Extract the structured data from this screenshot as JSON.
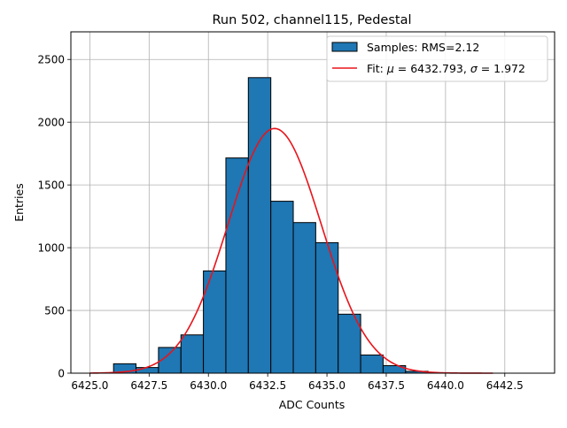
{
  "chart_data": {
    "type": "bar",
    "title": "Run 502, channel115, Pedestal",
    "xlabel": "ADC Counts",
    "ylabel": "Entries",
    "xlim": [
      6424.2,
      6444.6
    ],
    "ylim": [
      0,
      2720
    ],
    "xticks": [
      6425.0,
      6427.5,
      6430.0,
      6432.5,
      6435.0,
      6437.5,
      6440.0,
      6442.5
    ],
    "xtick_labels": [
      "6425.0",
      "6427.5",
      "6430.0",
      "6432.5",
      "6435.0",
      "6437.5",
      "6440.0",
      "6442.5"
    ],
    "yticks": [
      0,
      500,
      1000,
      1500,
      2000,
      2500
    ],
    "ytick_labels": [
      "0",
      "500",
      "1000",
      "1500",
      "2000",
      "2500"
    ],
    "grid": true,
    "legend_position": "top-right",
    "histogram": {
      "name": "Samples: RMS=2.12",
      "bin_edges": [
        6426.0,
        6426.947,
        6427.895,
        6428.842,
        6429.789,
        6430.737,
        6431.684,
        6432.632,
        6433.579,
        6434.526,
        6435.474,
        6436.421,
        6437.368,
        6438.316,
        6439.263,
        6440.211,
        6441.158,
        6442.105,
        6443.053,
        6444.0
      ],
      "counts": [
        75,
        45,
        205,
        305,
        815,
        1715,
        2355,
        1370,
        1200,
        1040,
        470,
        145,
        60,
        15,
        0,
        0,
        0,
        0,
        0
      ]
    },
    "fit": {
      "name_prefix": "Fit: ",
      "name_mu": "μ",
      "name_mid": " = 6432.793, ",
      "name_sigma": "σ",
      "name_suffix": " = 1.972",
      "mu": 6432.793,
      "sigma": 1.972,
      "amplitude": 1950,
      "x_range": [
        6425.0,
        6442.0
      ]
    },
    "colors": {
      "bars": "#1f77b4",
      "bar_edge": "#000000",
      "fit_line": "#e8141b",
      "grid": "#b0b0b0"
    }
  }
}
